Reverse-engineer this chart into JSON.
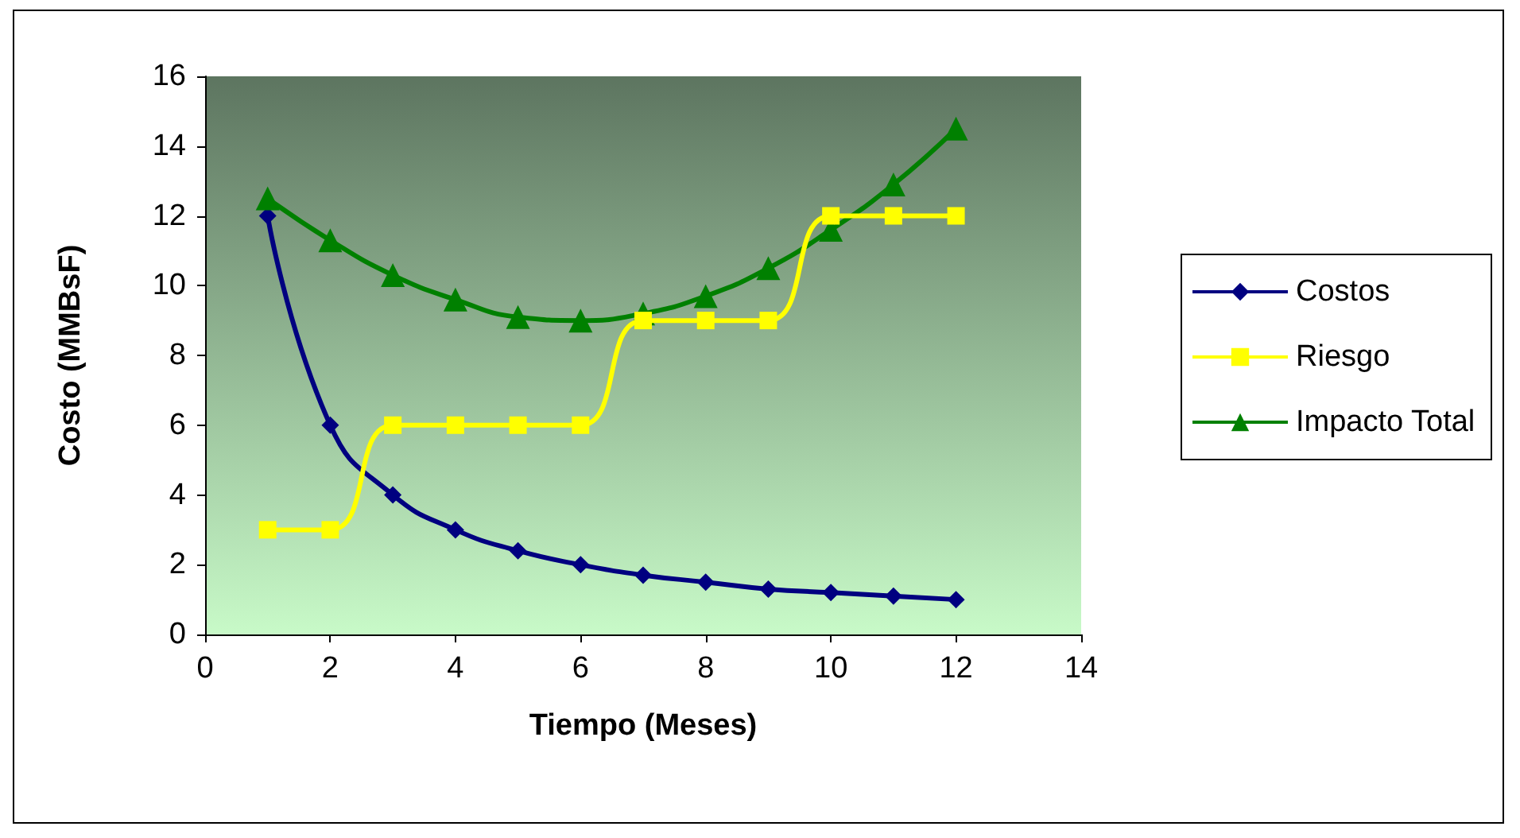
{
  "chart_data": {
    "type": "line",
    "xlabel": "Tiempo (Meses)",
    "ylabel": "Costo (MMBsF)",
    "x": [
      1,
      2,
      3,
      4,
      5,
      6,
      7,
      8,
      9,
      10,
      11,
      12
    ],
    "series": [
      {
        "name": "Costos",
        "color": "#000080",
        "marker": "diamond",
        "values": [
          12,
          6,
          4,
          3,
          2.4,
          2,
          1.7,
          1.5,
          1.3,
          1.2,
          1.1,
          1.0
        ]
      },
      {
        "name": "Riesgo",
        "color": "#ffff00",
        "marker": "square",
        "values": [
          3,
          3,
          6,
          6,
          6,
          6,
          9,
          9,
          9,
          12,
          12,
          12
        ]
      },
      {
        "name": "Impacto Total",
        "color": "#008000",
        "marker": "triangle",
        "values": [
          12.5,
          11.3,
          10.3,
          9.6,
          9.1,
          9.0,
          9.2,
          9.7,
          10.5,
          11.6,
          12.9,
          14.5
        ]
      }
    ],
    "xlim": [
      0,
      14
    ],
    "xticks": [
      0,
      2,
      4,
      6,
      8,
      10,
      12,
      14
    ],
    "ylim": [
      0,
      16
    ],
    "yticks": [
      0,
      2,
      4,
      6,
      8,
      10,
      12,
      14,
      16
    ],
    "grid": false,
    "legend": "right",
    "line_style": "solid"
  }
}
